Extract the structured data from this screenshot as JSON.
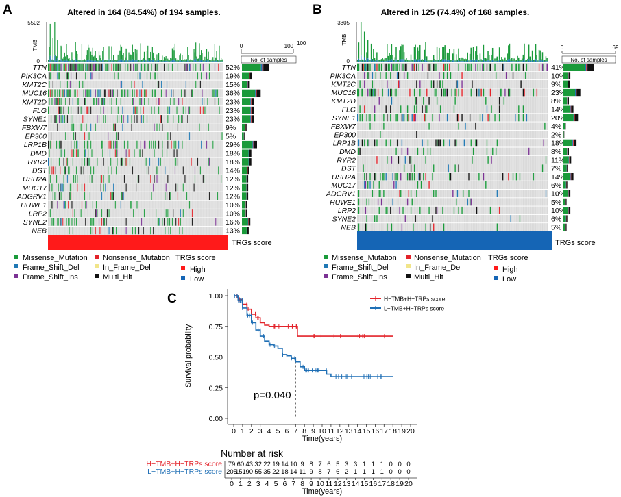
{
  "colors": {
    "missense": "#1a9a3a",
    "nonsense": "#e3232a",
    "frameshift_del": "#1f78b4",
    "inframe_del": "#f1e58a",
    "frameshift_ins": "#7b3294",
    "multi_hit": "#111111",
    "nonmutated": "#d9d9d9",
    "high": "#ff1a1a",
    "low": "#1565b5"
  },
  "panel_a": {
    "letter": "A",
    "title": "Altered in 164 (84.54%) of 194 samples.",
    "tmb_label": "TMB",
    "tmb_max": "5502",
    "tmb_min": "0",
    "bar_axis_label": "No. of samples",
    "bar_axis_min": "0",
    "bar_axis_max": "100",
    "bar_axis_top": "100",
    "score_label": "TRGs score",
    "score_group": "High",
    "samples": 194
  },
  "panel_b": {
    "letter": "B",
    "title": "Altered in 125 (74.4%) of 168 samples.",
    "tmb_label": "TMB",
    "tmb_max": "3305",
    "tmb_min": "0",
    "bar_axis_label": "No. of samples",
    "bar_axis_min": "0",
    "bar_axis_max": "69",
    "score_label": "TRGs score",
    "score_group": "Low",
    "samples": 168
  },
  "oncoplot_genes": [
    "TTN",
    "PIK3CA",
    "KMT2C",
    "MUC16",
    "KMT2D",
    "FLG",
    "SYNE1",
    "FBXW7",
    "EP300",
    "LRP1B",
    "DMD",
    "RYR2",
    "DST",
    "USH2A",
    "MUC17",
    "ADGRV1",
    "HUWE1",
    "LRP2",
    "SYNE2",
    "NEB"
  ],
  "oncoplot_pct_a": [
    "52%",
    "19%",
    "15%",
    "36%",
    "23%",
    "23%",
    "23%",
    "9%",
    "5%",
    "29%",
    "18%",
    "18%",
    "14%",
    "12%",
    "12%",
    "12%",
    "10%",
    "10%",
    "16%",
    "13%"
  ],
  "oncoplot_pct_b": [
    "41%",
    "10%",
    "9%",
    "23%",
    "8%",
    "14%",
    "20%",
    "4%",
    "2%",
    "18%",
    "8%",
    "11%",
    "7%",
    "14%",
    "6%",
    "10%",
    "5%",
    "10%",
    "6%",
    "5%"
  ],
  "legend": {
    "missense": "Missense_Mutation",
    "nonsense": "Nonsense_Mutation",
    "frameshift_del": "Frame_Shift_Del",
    "inframe_del": "In_Frame_Del",
    "frameshift_ins": "Frame_Shift_Ins",
    "multi_hit": "Multi_Hit",
    "score_title": "TRGs score",
    "high": "High",
    "low": "Low"
  },
  "panel_c": {
    "letter": "C"
  },
  "chart_data": [
    {
      "type": "bar",
      "title": "Altered in 164 (84.54%) of 194 samples.",
      "xlabel": "No. of samples",
      "categories": [
        "TTN",
        "PIK3CA",
        "KMT2C",
        "MUC16",
        "KMT2D",
        "FLG",
        "SYNE1",
        "FBXW7",
        "EP300",
        "LRP1B",
        "DMD",
        "RYR2",
        "DST",
        "USH2A",
        "MUC17",
        "ADGRV1",
        "HUWE1",
        "LRP2",
        "SYNE2",
        "NEB"
      ],
      "values": [
        52,
        19,
        15,
        36,
        23,
        23,
        23,
        9,
        5,
        29,
        18,
        18,
        14,
        12,
        12,
        12,
        10,
        10,
        16,
        13
      ],
      "unit": "percent altered",
      "xlim": [
        0,
        100
      ]
    },
    {
      "type": "bar",
      "title": "Altered in 125 (74.4%) of 168 samples.",
      "xlabel": "No. of samples",
      "categories": [
        "TTN",
        "PIK3CA",
        "KMT2C",
        "MUC16",
        "KMT2D",
        "FLG",
        "SYNE1",
        "FBXW7",
        "EP300",
        "LRP1B",
        "DMD",
        "RYR2",
        "DST",
        "USH2A",
        "MUC17",
        "ADGRV1",
        "HUWE1",
        "LRP2",
        "SYNE2",
        "NEB"
      ],
      "values": [
        41,
        10,
        9,
        23,
        8,
        14,
        20,
        4,
        2,
        18,
        8,
        11,
        7,
        14,
        6,
        10,
        5,
        10,
        6,
        5
      ],
      "unit": "percent altered",
      "xlim": [
        0,
        69
      ]
    },
    {
      "type": "line",
      "title": "",
      "xlabel": "Time(years)",
      "ylabel": "Survival probability",
      "xlim": [
        0,
        20
      ],
      "ylim": [
        0,
        1
      ],
      "x_ticks": [
        "0",
        "1",
        "2",
        "3",
        "4",
        "5",
        "6",
        "7",
        "8",
        "9",
        "10",
        "11",
        "12",
        "13",
        "14",
        "15",
        "16",
        "17",
        "18",
        "19",
        "20"
      ],
      "y_ticks": [
        "0.00",
        "0.25",
        "0.50",
        "0.75",
        "1.00"
      ],
      "annotation": "p=0.040",
      "series": [
        {
          "name": "H−TMB+H−TRPs score",
          "color": "#e3232a",
          "x": [
            0,
            0.5,
            1,
            1.5,
            2,
            2.5,
            3,
            3.5,
            4,
            5,
            6,
            7,
            7.2,
            18
          ],
          "y": [
            1.0,
            0.97,
            0.93,
            0.89,
            0.85,
            0.82,
            0.78,
            0.76,
            0.75,
            0.75,
            0.75,
            0.75,
            0.67,
            0.67
          ]
        },
        {
          "name": "L−TMB+H−TRPs score",
          "color": "#1f6fb5",
          "x": [
            0,
            0.5,
            1,
            1.5,
            2,
            2.5,
            3,
            3.5,
            4,
            4.5,
            5,
            5.5,
            6,
            6.5,
            7,
            7.5,
            8,
            10,
            10.5,
            11,
            18
          ],
          "y": [
            1.0,
            0.96,
            0.9,
            0.84,
            0.78,
            0.72,
            0.67,
            0.63,
            0.6,
            0.59,
            0.57,
            0.52,
            0.51,
            0.49,
            0.46,
            0.42,
            0.39,
            0.39,
            0.36,
            0.34,
            0.34
          ]
        }
      ]
    },
    {
      "type": "table",
      "title": "Number at risk",
      "xlabel": "Time(years)",
      "columns": [
        "0",
        "1",
        "2",
        "3",
        "4",
        "5",
        "6",
        "7",
        "8",
        "9",
        "10",
        "11",
        "12",
        "13",
        "14",
        "15",
        "16",
        "17",
        "18",
        "19",
        "20"
      ],
      "rows": [
        {
          "name": "H−TMB+H−TRPs score",
          "color": "#e3232a",
          "values": [
            "79",
            "60",
            "43",
            "32",
            "22",
            "19",
            "14",
            "10",
            "9",
            "8",
            "7",
            "6",
            "5",
            "3",
            "3",
            "1",
            "1",
            "1",
            "0",
            "0",
            "0"
          ]
        },
        {
          "name": "L−TMB+H−TRPs score",
          "color": "#1f6fb5",
          "values": [
            "205",
            "151",
            "90",
            "55",
            "35",
            "22",
            "18",
            "14",
            "11",
            "9",
            "8",
            "7",
            "6",
            "2",
            "1",
            "1",
            "1",
            "1",
            "0",
            "0",
            "0"
          ]
        }
      ]
    }
  ]
}
